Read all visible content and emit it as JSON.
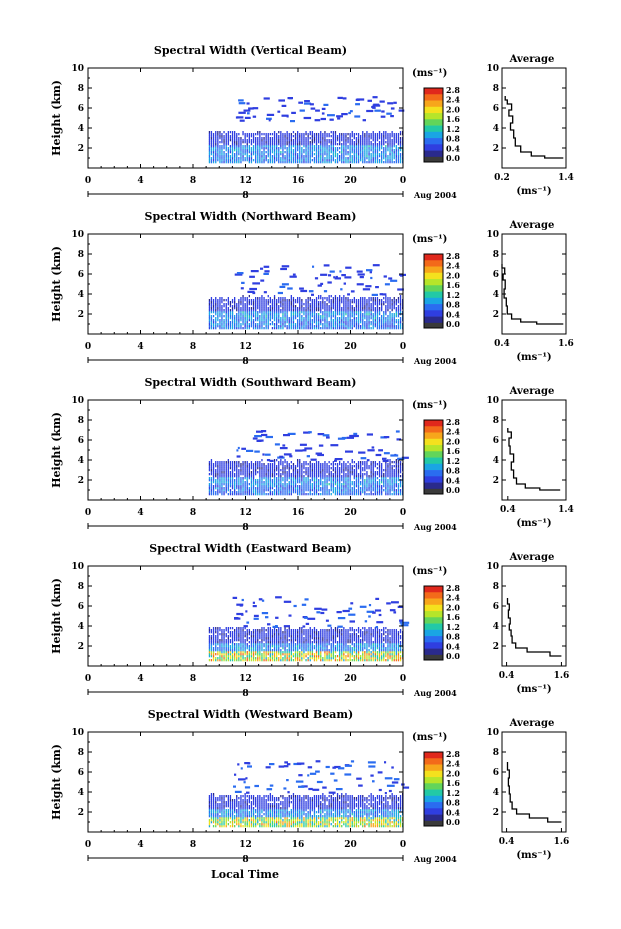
{
  "page": {
    "xlabel": "Local Time"
  },
  "colorbar": {
    "unit": "(ms⁻¹)",
    "ticks": [
      "2.8",
      "2.4",
      "2.0",
      "1.6",
      "1.2",
      "0.8",
      "0.4",
      "0.0"
    ],
    "colors": [
      "#e0281c",
      "#f36a1a",
      "#f7a61b",
      "#f4e11e",
      "#b6e52a",
      "#62d55a",
      "#22c9a6",
      "#1aa5e4",
      "#2a6cf0",
      "#2f3ee0",
      "#2a2a8c",
      "#3a3a3a"
    ]
  },
  "chart_data": [
    {
      "type": "heatmap",
      "title": "Spectral Width (Vertical Beam)",
      "ylabel": "Height (km)",
      "xlim": [
        0,
        24
      ],
      "ylim": [
        0,
        10
      ],
      "x_ticks": [
        "0",
        "4",
        "8",
        "12",
        "16",
        "20",
        "0"
      ],
      "y_ticks": [
        "10",
        "8",
        "6",
        "4",
        "2"
      ],
      "date_label": "8",
      "date_suffix": "Aug 2004",
      "data_start_hour": 9.2,
      "main_top_km": 3.5,
      "upper_echo_km": [
        6.0,
        7.2
      ],
      "high_width_max": 1.0,
      "average": {
        "title": "Average",
        "xlabel": "(ms⁻¹)",
        "x_ticks": [
          "0.2",
          "1.4"
        ],
        "xlim": [
          0.2,
          1.4
        ],
        "y_ticks": [
          "10",
          "8",
          "6",
          "4",
          "2"
        ],
        "profile": [
          [
            1.35,
            1.0
          ],
          [
            1.0,
            1.2
          ],
          [
            0.75,
            1.6
          ],
          [
            0.55,
            2.2
          ],
          [
            0.45,
            3.0
          ],
          [
            0.42,
            3.8
          ],
          [
            0.36,
            4.5
          ],
          [
            0.4,
            5.2
          ],
          [
            0.33,
            5.8
          ],
          [
            0.38,
            6.4
          ],
          [
            0.3,
            6.8
          ],
          [
            0.26,
            7.2
          ]
        ]
      }
    },
    {
      "type": "heatmap",
      "title": "Spectral Width (Northward Beam)",
      "ylabel": "Height (km)",
      "xlim": [
        0,
        24
      ],
      "ylim": [
        0,
        10
      ],
      "x_ticks": [
        "0",
        "4",
        "8",
        "12",
        "16",
        "20",
        "0"
      ],
      "y_ticks": [
        "10",
        "8",
        "6",
        "4",
        "2"
      ],
      "date_label": "8",
      "date_suffix": "Aug 2004",
      "data_start_hour": 9.2,
      "main_top_km": 3.6,
      "upper_echo_km": [
        5.0,
        7.0
      ],
      "high_width_max": 0.9,
      "average": {
        "title": "Average",
        "xlabel": "(ms⁻¹)",
        "x_ticks": [
          "0.4",
          "1.6"
        ],
        "xlim": [
          0.4,
          1.6
        ],
        "y_ticks": [
          "10",
          "8",
          "6",
          "4",
          "2"
        ],
        "profile": [
          [
            1.55,
            1.0
          ],
          [
            1.05,
            1.2
          ],
          [
            0.75,
            1.5
          ],
          [
            0.58,
            2.0
          ],
          [
            0.5,
            2.8
          ],
          [
            0.48,
            3.6
          ],
          [
            0.44,
            4.5
          ],
          [
            0.46,
            5.4
          ],
          [
            0.42,
            6.0
          ],
          [
            0.45,
            6.6
          ],
          [
            0.4,
            7.0
          ]
        ]
      }
    },
    {
      "type": "heatmap",
      "title": "Spectral Width (Southward Beam)",
      "ylabel": "Height (km)",
      "xlim": [
        0,
        24
      ],
      "ylim": [
        0,
        10
      ],
      "x_ticks": [
        "0",
        "4",
        "8",
        "12",
        "16",
        "20",
        "0"
      ],
      "y_ticks": [
        "10",
        "8",
        "6",
        "4",
        "2"
      ],
      "date_label": "8",
      "date_suffix": "Aug 2004",
      "data_start_hour": 9.2,
      "main_top_km": 3.8,
      "upper_echo_km": [
        5.0,
        7.0
      ],
      "high_width_max": 0.8,
      "average": {
        "title": "Average",
        "xlabel": "(ms⁻¹)",
        "x_ticks": [
          "0.4",
          "1.4"
        ],
        "xlim": [
          0.3,
          1.4
        ],
        "y_ticks": [
          "10",
          "8",
          "6",
          "4",
          "2"
        ],
        "profile": [
          [
            1.3,
            1.0
          ],
          [
            0.95,
            1.2
          ],
          [
            0.7,
            1.6
          ],
          [
            0.55,
            2.2
          ],
          [
            0.5,
            3.0
          ],
          [
            0.46,
            3.8
          ],
          [
            0.5,
            4.6
          ],
          [
            0.44,
            5.4
          ],
          [
            0.42,
            6.2
          ],
          [
            0.46,
            6.8
          ],
          [
            0.4,
            7.2
          ]
        ]
      }
    },
    {
      "type": "heatmap",
      "title": "Spectral Width (Eastward Beam)",
      "ylabel": "Height (km)",
      "xlim": [
        0,
        24
      ],
      "ylim": [
        0,
        10
      ],
      "x_ticks": [
        "0",
        "4",
        "8",
        "12",
        "16",
        "20",
        "0"
      ],
      "y_ticks": [
        "10",
        "8",
        "6",
        "4",
        "2"
      ],
      "date_label": "8",
      "date_suffix": "Aug 2004",
      "data_start_hour": 9.2,
      "main_top_km": 3.7,
      "upper_echo_km": [
        5.0,
        7.0
      ],
      "high_width_max": 2.6,
      "average": {
        "title": "Average",
        "xlabel": "(ms⁻¹)",
        "x_ticks": [
          "0.4",
          "1.6"
        ],
        "xlim": [
          0.3,
          1.7
        ],
        "y_ticks": [
          "10",
          "8",
          "6",
          "4",
          "2"
        ],
        "profile": [
          [
            1.6,
            1.0
          ],
          [
            1.35,
            1.4
          ],
          [
            0.85,
            1.8
          ],
          [
            0.6,
            2.3
          ],
          [
            0.52,
            3.0
          ],
          [
            0.5,
            3.6
          ],
          [
            0.46,
            4.2
          ],
          [
            0.48,
            4.8
          ],
          [
            0.44,
            5.6
          ],
          [
            0.46,
            6.2
          ],
          [
            0.42,
            6.8
          ]
        ]
      }
    },
    {
      "type": "heatmap",
      "title": "Spectral Width (Westward Beam)",
      "ylabel": "Height (km)",
      "xlim": [
        0,
        24
      ],
      "ylim": [
        0,
        10
      ],
      "x_ticks": [
        "0",
        "4",
        "8",
        "12",
        "16",
        "20",
        "0"
      ],
      "y_ticks": [
        "10",
        "8",
        "6",
        "4",
        "2"
      ],
      "date_label": "8",
      "date_suffix": "Aug 2004",
      "data_start_hour": 9.2,
      "main_top_km": 3.6,
      "upper_echo_km": [
        5.0,
        7.2
      ],
      "high_width_max": 2.4,
      "average": {
        "title": "Average",
        "xlabel": "(ms⁻¹)",
        "x_ticks": [
          "0.4",
          "1.6"
        ],
        "xlim": [
          0.3,
          1.7
        ],
        "y_ticks": [
          "10",
          "8",
          "6",
          "4",
          "2"
        ],
        "profile": [
          [
            1.6,
            1.0
          ],
          [
            1.3,
            1.4
          ],
          [
            0.9,
            1.8
          ],
          [
            0.62,
            2.3
          ],
          [
            0.52,
            3.0
          ],
          [
            0.48,
            3.8
          ],
          [
            0.46,
            4.6
          ],
          [
            0.44,
            5.4
          ],
          [
            0.46,
            6.2
          ],
          [
            0.42,
            7.0
          ]
        ]
      }
    }
  ]
}
